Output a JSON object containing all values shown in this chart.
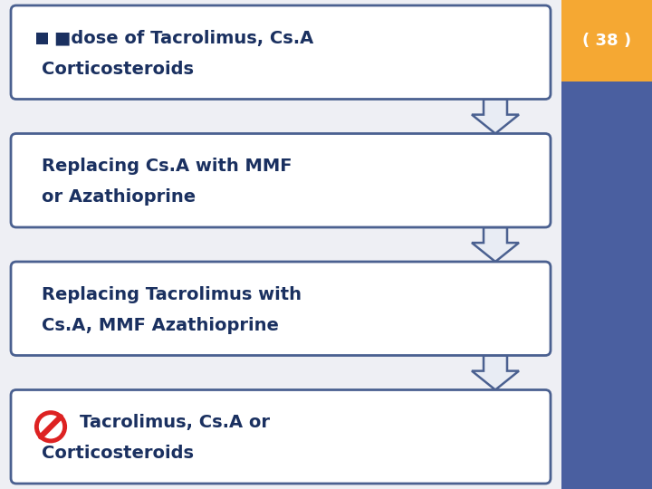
{
  "bg_color": "#eeeff4",
  "right_panel_color": "#4a5fa0",
  "right_accent_color": "#f5a833",
  "border_color": "#4a6090",
  "text_color": "#1a3060",
  "arrow_fill": "#e8ecf4",
  "arrow_edge": "#4a6090",
  "boxes": [
    {
      "label1": "■dose of Tacrolimus, Cs.A",
      "label2": "Corticosteroids",
      "stop_symbol": false,
      "small_square": true
    },
    {
      "label1": "Replacing Cs.A with MMF",
      "label2": "or Azathioprine",
      "stop_symbol": false,
      "small_square": false
    },
    {
      "label1": "Replacing Tacrolimus with",
      "label2": "Cs.A, MMF Azathioprine",
      "stop_symbol": false,
      "small_square": false
    },
    {
      "label1": "Tacrolimus, Cs.A or",
      "label2": "Corticosteroids",
      "stop_symbol": true,
      "small_square": false
    }
  ],
  "page_number": "38",
  "font_size": 14
}
